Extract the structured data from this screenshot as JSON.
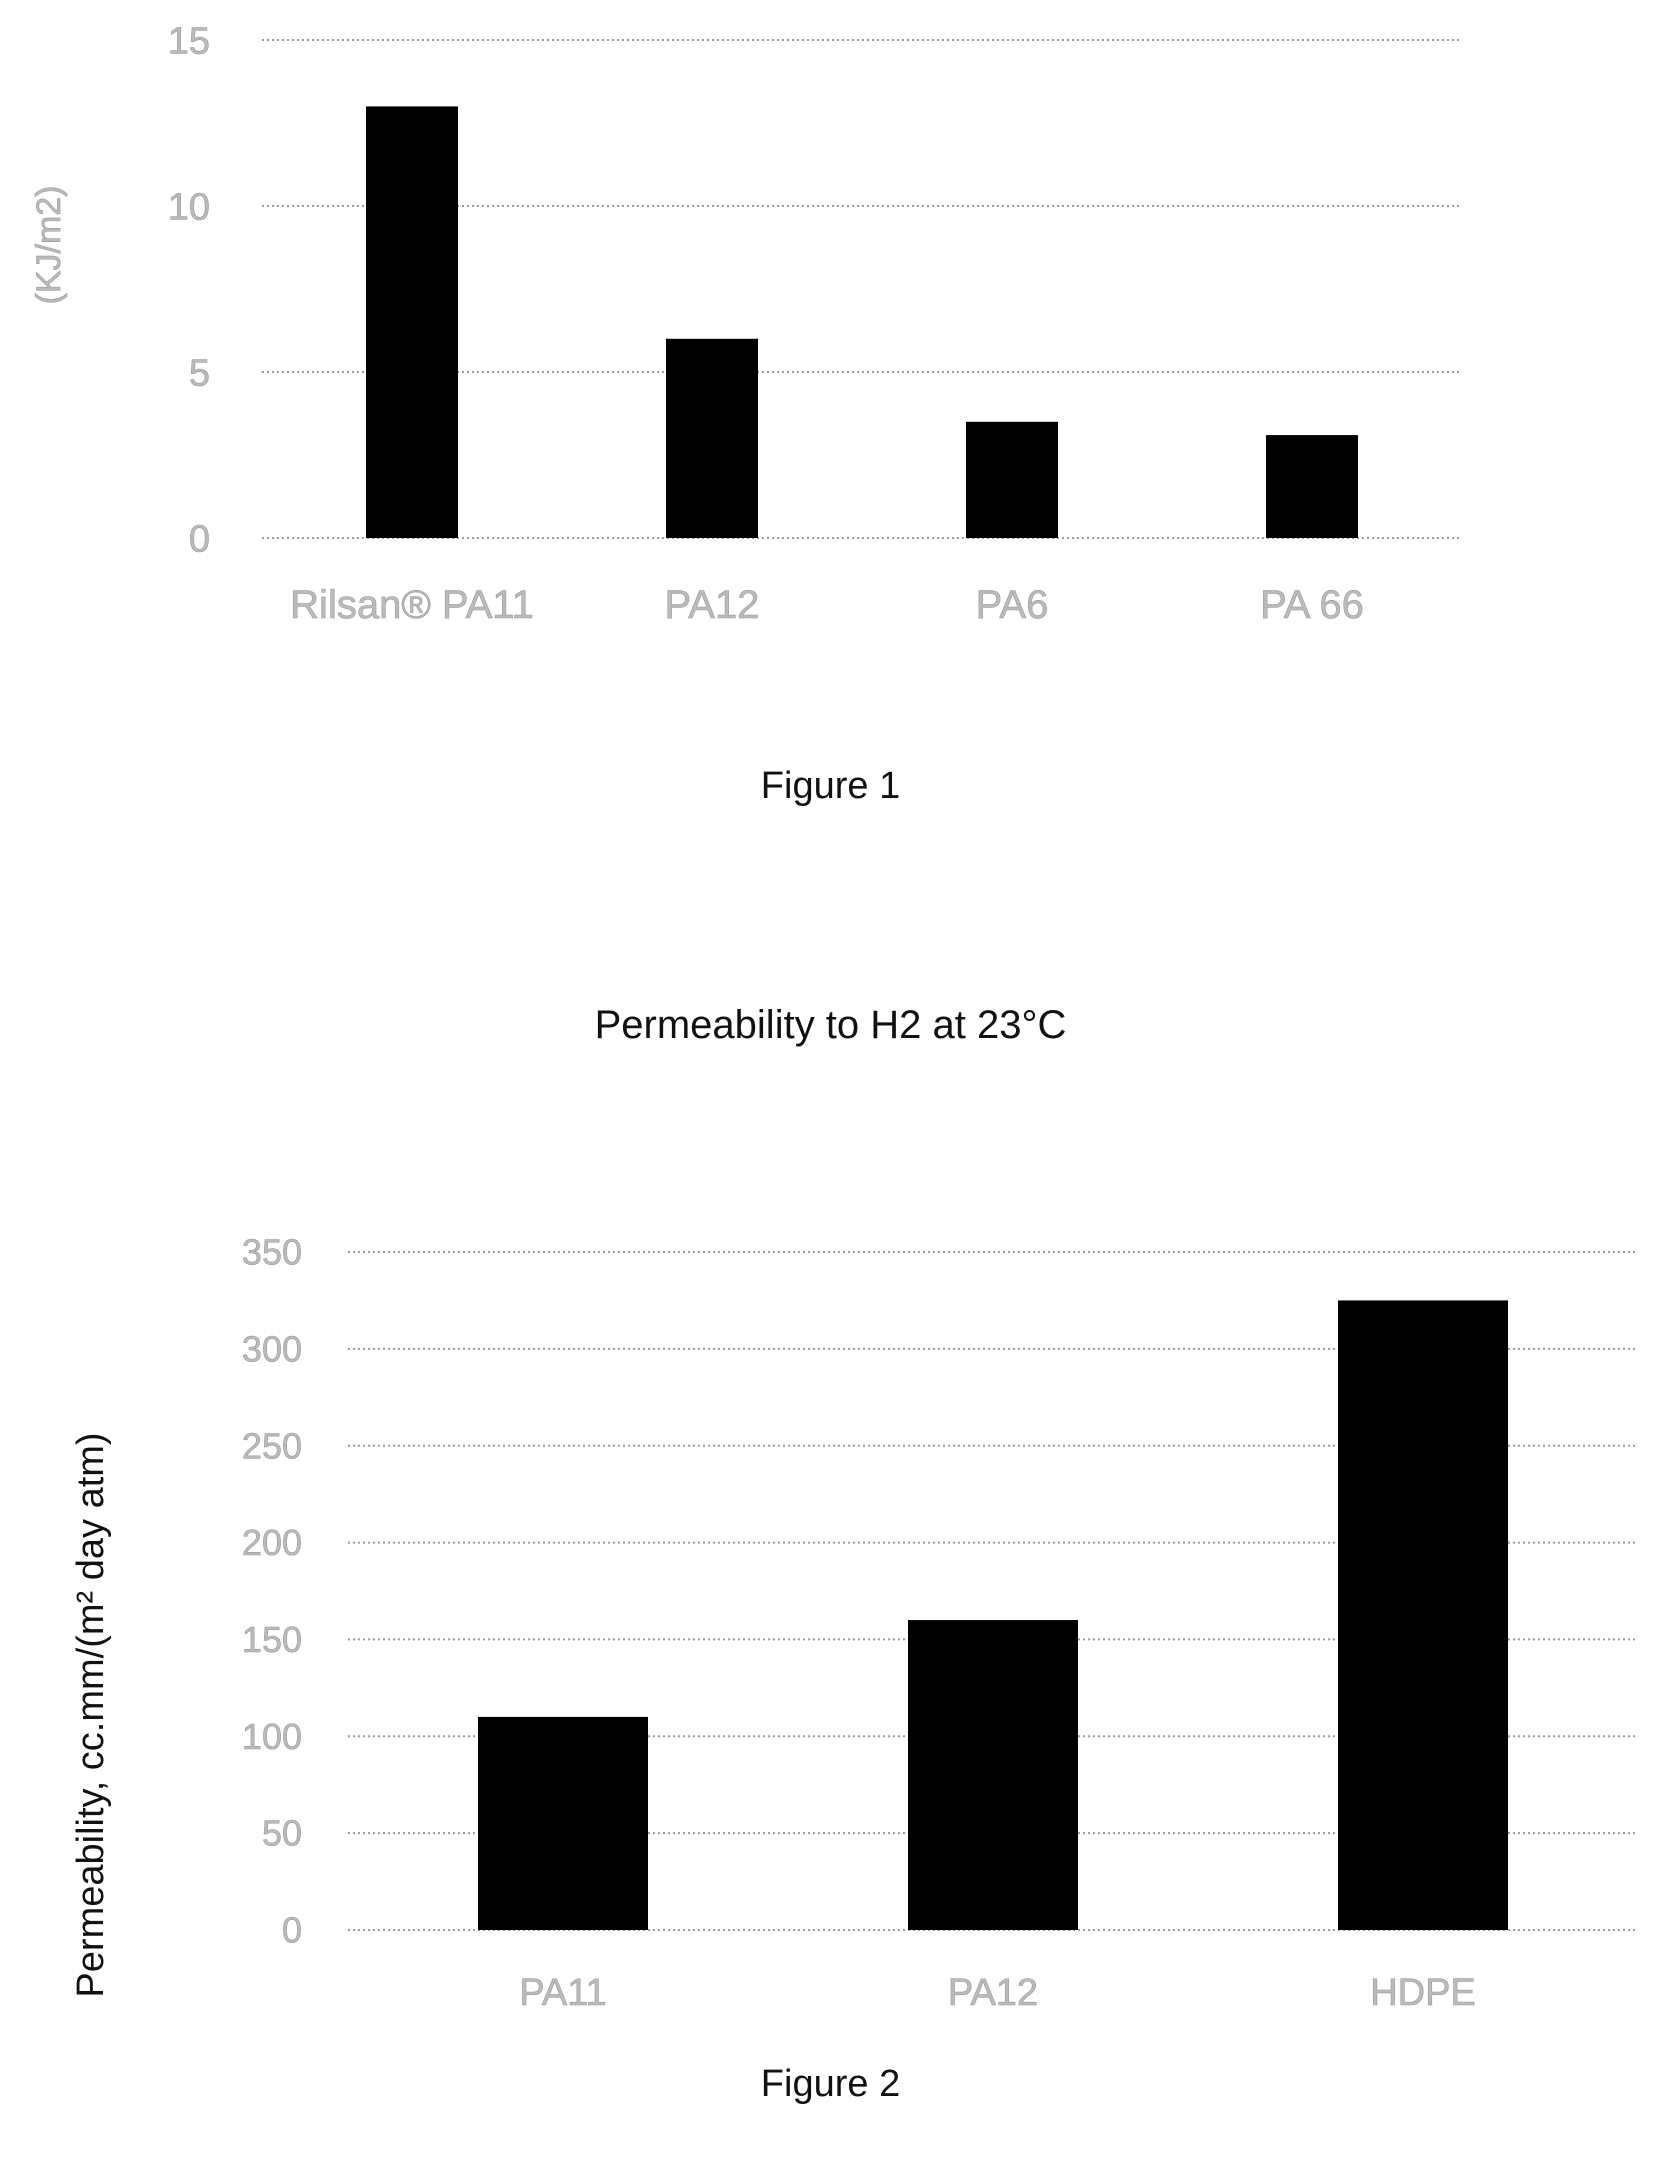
{
  "figure1": {
    "caption": "Figure 1",
    "colors": {
      "bar": "#000000",
      "grid": "#9a9a9a",
      "tick": "#bbbbbb"
    }
  },
  "figure2": {
    "caption": "Figure 2",
    "colors": {
      "bar": "#000000",
      "grid": "#9a9a9a",
      "tick": "#bbbbbb",
      "label": "#111111"
    }
  },
  "chart_data": [
    {
      "type": "bar",
      "title": "",
      "xlabel": "",
      "ylabel": "(KJ/m2)",
      "categories": [
        "Rilsan® PA11",
        "PA12",
        "PA6",
        "PA 66"
      ],
      "values": [
        13,
        6,
        3.5,
        3.1
      ],
      "ylim": [
        0,
        15
      ],
      "yticks": [
        0,
        5,
        10,
        15
      ],
      "grid": true,
      "legend": "none"
    },
    {
      "type": "bar",
      "title": "Permeability to H2 at 23°C",
      "xlabel": "",
      "ylabel": "Permeability, cc.mm/(m² day atm)",
      "categories": [
        "PA11",
        "PA12",
        "HDPE"
      ],
      "values": [
        110,
        160,
        325
      ],
      "ylim": [
        0,
        350
      ],
      "yticks": [
        0,
        50,
        100,
        150,
        200,
        250,
        300,
        350
      ],
      "grid": true,
      "legend": "none"
    }
  ]
}
